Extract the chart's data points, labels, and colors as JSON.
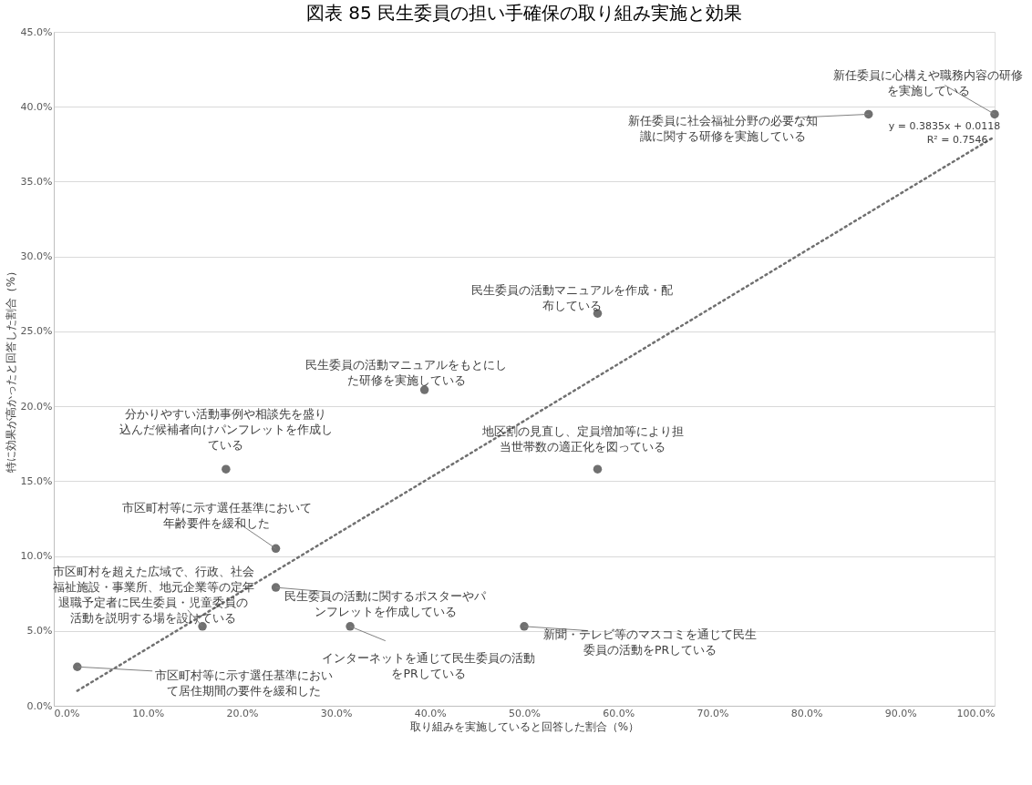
{
  "chart_data": {
    "type": "scatter",
    "title": "図表 85 民生委員の担い手確保の取り組み実施と効果",
    "xlabel": "取り組みを実施していると回答した割合（%）",
    "ylabel": "特に効果が高かったと回答した割合（%）",
    "xlim": [
      0,
      100
    ],
    "ylim": [
      0,
      45
    ],
    "xticks": [
      {
        "value": 0,
        "label": "0.0%"
      },
      {
        "value": 10,
        "label": "10.0%"
      },
      {
        "value": 20,
        "label": "20.0%"
      },
      {
        "value": 30,
        "label": "30.0%"
      },
      {
        "value": 40,
        "label": "40.0%"
      },
      {
        "value": 50,
        "label": "50.0%"
      },
      {
        "value": 60,
        "label": "60.0%"
      },
      {
        "value": 70,
        "label": "70.0%"
      },
      {
        "value": 80,
        "label": "80.0%"
      },
      {
        "value": 90,
        "label": "90.0%"
      },
      {
        "value": 100,
        "label": "100.0%"
      }
    ],
    "yticks": [
      {
        "value": 0,
        "label": "0.0%"
      },
      {
        "value": 5,
        "label": "5.0%"
      },
      {
        "value": 10,
        "label": "10.0%"
      },
      {
        "value": 15,
        "label": "15.0%"
      },
      {
        "value": 20,
        "label": "20.0%"
      },
      {
        "value": 25,
        "label": "25.0%"
      },
      {
        "value": 30,
        "label": "30.0%"
      },
      {
        "value": 35,
        "label": "35.0%"
      },
      {
        "value": 40,
        "label": "40.0%"
      },
      {
        "value": 45,
        "label": "45.0%"
      }
    ],
    "grid": "y",
    "marker": "circle",
    "series": [
      {
        "color": "#707070",
        "x": [
          100,
          86.6,
          57.8,
          39.4,
          18.3,
          57.8,
          23.6,
          23.6,
          15.8,
          31.5,
          50.0,
          2.5
        ],
        "values": [
          39.5,
          39.5,
          26.2,
          21.1,
          15.8,
          15.8,
          10.5,
          7.9,
          5.3,
          5.3,
          5.3,
          2.6
        ]
      },
      {
        "type": "line",
        "color": "#707070",
        "line_style": "dotted",
        "marker": "none",
        "x": [
          2.5,
          100
        ],
        "values": [
          1.0,
          38.0
        ]
      }
    ],
    "annotations": [
      {
        "text": "新任委員に心構えや職務内容の研修を実施している",
        "x": 100,
        "y": 39.5
      },
      {
        "text": "新任委員に社会福祉分野の必要な知識に関する研修を実施している",
        "x": 86.6,
        "y": 39.5
      },
      {
        "text": "民生委員の活動マニュアルを作成・配布している",
        "x": 57.8,
        "y": 26.2
      },
      {
        "text": "民生委員の活動マニュアルをもとにした研修を実施している",
        "x": 39.4,
        "y": 21.1
      },
      {
        "text": "分かりやすい活動事例や相談先を盛り込んだ候補者向けパンフレットを作成している",
        "x": 18.3,
        "y": 15.8
      },
      {
        "text": "地区割の見直し、定員増加等により担当世帯数の適正化を図っている",
        "x": 57.8,
        "y": 15.8
      },
      {
        "text": "市区町村等に示す選任基準において年齢要件を緩和した",
        "x": 23.6,
        "y": 10.5
      },
      {
        "text": "民生委員の活動に関するポスターやパンフレットを作成している",
        "x": 23.6,
        "y": 7.9
      },
      {
        "text": "市区町村を超えた広域で、行政、社会福祉施設・事業所、地元企業等の定年退職予定者に民生委員・児童委員の活動を説明する場を設けている",
        "x": 15.8,
        "y": 5.3
      },
      {
        "text": "インターネットを通じて民生委員の活動をPRしている",
        "x": 31.5,
        "y": 5.3
      },
      {
        "text": "新聞・テレビ等のマスコミを通じて民生委員の活動をPRしている",
        "x": 50.0,
        "y": 5.3
      },
      {
        "text": "市区町村等に示す選任基準において居住期間の要件を緩和した",
        "x": 2.5,
        "y": 2.6
      },
      "y = 0.3835x + 0.0118",
      "R² = 0.7546"
    ]
  }
}
